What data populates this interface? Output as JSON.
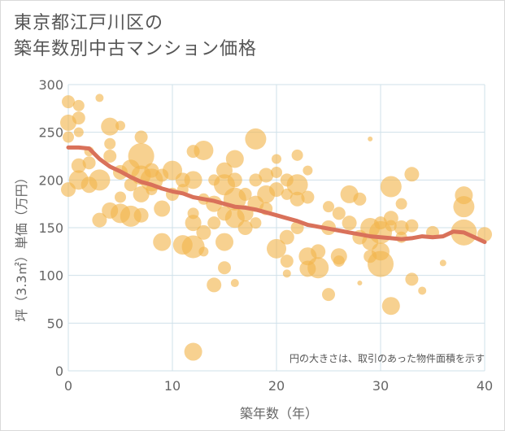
{
  "title": {
    "line1": "東京都江戸川区の",
    "line2": "築年数別中古マンション価格"
  },
  "chart_data": {
    "type": "scatter",
    "title": "東京都江戸川区の築年数別中古マンション価格",
    "xlabel": "築年数（年）",
    "ylabel": "坪（3.3㎡）単価（万円）",
    "xlim": [
      0,
      40
    ],
    "ylim": [
      0,
      300
    ],
    "x_ticks": [
      "0",
      "10",
      "20",
      "30",
      "40"
    ],
    "y_ticks": [
      "0",
      "50",
      "100",
      "150",
      "200",
      "250",
      "300"
    ],
    "annotation": "円の大きさは、取引のあった物件面積を示す",
    "grid": true,
    "colors": {
      "bubble": "#f2b54c",
      "line": "#d9715a",
      "grid": "#cfe0ea"
    },
    "trend_line": {
      "x": [
        0,
        1,
        2,
        3,
        4,
        5,
        6,
        7,
        8,
        9,
        10,
        11,
        12,
        13,
        14,
        15,
        16,
        17,
        18,
        19,
        20,
        21,
        22,
        23,
        24,
        25,
        26,
        27,
        28,
        29,
        30,
        31,
        32,
        33,
        34,
        35,
        36,
        37,
        38,
        39,
        40
      ],
      "y": [
        234,
        234,
        233,
        222,
        214,
        209,
        203,
        198,
        195,
        191,
        188,
        186,
        182,
        180,
        178,
        175,
        172,
        171,
        169,
        166,
        163,
        160,
        157,
        153,
        151,
        149,
        147,
        145,
        143,
        141,
        140,
        139,
        138,
        139,
        141,
        140,
        141,
        146,
        145,
        140,
        135
      ]
    },
    "points": [
      {
        "x": 0,
        "y": 282,
        "s": 8
      },
      {
        "x": 0,
        "y": 260,
        "s": 10
      },
      {
        "x": 0,
        "y": 245,
        "s": 7
      },
      {
        "x": 0,
        "y": 190,
        "s": 9
      },
      {
        "x": 1,
        "y": 278,
        "s": 7
      },
      {
        "x": 1,
        "y": 265,
        "s": 8
      },
      {
        "x": 1,
        "y": 250,
        "s": 6
      },
      {
        "x": 1,
        "y": 215,
        "s": 9
      },
      {
        "x": 1,
        "y": 200,
        "s": 12
      },
      {
        "x": 2,
        "y": 230,
        "s": 6
      },
      {
        "x": 2,
        "y": 218,
        "s": 8
      },
      {
        "x": 2,
        "y": 195,
        "s": 10
      },
      {
        "x": 3,
        "y": 286,
        "s": 5
      },
      {
        "x": 3,
        "y": 200,
        "s": 13
      },
      {
        "x": 3,
        "y": 158,
        "s": 9
      },
      {
        "x": 4,
        "y": 256,
        "s": 11
      },
      {
        "x": 4,
        "y": 238,
        "s": 7
      },
      {
        "x": 4,
        "y": 225,
        "s": 8
      },
      {
        "x": 4,
        "y": 168,
        "s": 10
      },
      {
        "x": 5,
        "y": 257,
        "s": 6
      },
      {
        "x": 5,
        "y": 208,
        "s": 9
      },
      {
        "x": 5,
        "y": 182,
        "s": 7
      },
      {
        "x": 5,
        "y": 165,
        "s": 12
      },
      {
        "x": 6,
        "y": 212,
        "s": 11
      },
      {
        "x": 6,
        "y": 195,
        "s": 8
      },
      {
        "x": 6,
        "y": 162,
        "s": 13
      },
      {
        "x": 7,
        "y": 245,
        "s": 8
      },
      {
        "x": 7,
        "y": 225,
        "s": 16
      },
      {
        "x": 7,
        "y": 205,
        "s": 12
      },
      {
        "x": 7,
        "y": 185,
        "s": 10
      },
      {
        "x": 7,
        "y": 163,
        "s": 9
      },
      {
        "x": 8,
        "y": 210,
        "s": 9
      },
      {
        "x": 8,
        "y": 200,
        "s": 14
      },
      {
        "x": 8,
        "y": 190,
        "s": 7
      },
      {
        "x": 9,
        "y": 205,
        "s": 8
      },
      {
        "x": 9,
        "y": 170,
        "s": 10
      },
      {
        "x": 9,
        "y": 135,
        "s": 11
      },
      {
        "x": 10,
        "y": 210,
        "s": 12
      },
      {
        "x": 10,
        "y": 185,
        "s": 8
      },
      {
        "x": 11,
        "y": 200,
        "s": 9
      },
      {
        "x": 11,
        "y": 190,
        "s": 7
      },
      {
        "x": 11,
        "y": 132,
        "s": 12
      },
      {
        "x": 12,
        "y": 230,
        "s": 8
      },
      {
        "x": 12,
        "y": 200,
        "s": 11
      },
      {
        "x": 12,
        "y": 165,
        "s": 7
      },
      {
        "x": 12,
        "y": 155,
        "s": 10
      },
      {
        "x": 12,
        "y": 130,
        "s": 14
      },
      {
        "x": 12,
        "y": 20,
        "s": 11
      },
      {
        "x": 13,
        "y": 231,
        "s": 12
      },
      {
        "x": 13,
        "y": 180,
        "s": 7
      },
      {
        "x": 13,
        "y": 145,
        "s": 9
      },
      {
        "x": 13,
        "y": 125,
        "s": 6
      },
      {
        "x": 14,
        "y": 200,
        "s": 7
      },
      {
        "x": 14,
        "y": 175,
        "s": 10
      },
      {
        "x": 14,
        "y": 155,
        "s": 8
      },
      {
        "x": 14,
        "y": 90,
        "s": 9
      },
      {
        "x": 15,
        "y": 210,
        "s": 10
      },
      {
        "x": 15,
        "y": 195,
        "s": 13
      },
      {
        "x": 15,
        "y": 165,
        "s": 9
      },
      {
        "x": 15,
        "y": 135,
        "s": 11
      },
      {
        "x": 15,
        "y": 108,
        "s": 8
      },
      {
        "x": 16,
        "y": 222,
        "s": 11
      },
      {
        "x": 16,
        "y": 200,
        "s": 9
      },
      {
        "x": 16,
        "y": 180,
        "s": 14
      },
      {
        "x": 16,
        "y": 160,
        "s": 12
      },
      {
        "x": 16,
        "y": 92,
        "s": 5
      },
      {
        "x": 17,
        "y": 185,
        "s": 8
      },
      {
        "x": 17,
        "y": 165,
        "s": 10
      },
      {
        "x": 17,
        "y": 150,
        "s": 9
      },
      {
        "x": 18,
        "y": 243,
        "s": 13
      },
      {
        "x": 18,
        "y": 200,
        "s": 8
      },
      {
        "x": 18,
        "y": 175,
        "s": 10
      },
      {
        "x": 18,
        "y": 155,
        "s": 7
      },
      {
        "x": 19,
        "y": 205,
        "s": 9
      },
      {
        "x": 19,
        "y": 185,
        "s": 11
      },
      {
        "x": 19,
        "y": 170,
        "s": 8
      },
      {
        "x": 20,
        "y": 222,
        "s": 6
      },
      {
        "x": 20,
        "y": 208,
        "s": 7
      },
      {
        "x": 20,
        "y": 190,
        "s": 9
      },
      {
        "x": 20,
        "y": 128,
        "s": 12
      },
      {
        "x": 21,
        "y": 200,
        "s": 8
      },
      {
        "x": 21,
        "y": 185,
        "s": 7
      },
      {
        "x": 21,
        "y": 140,
        "s": 9
      },
      {
        "x": 21,
        "y": 115,
        "s": 8
      },
      {
        "x": 21,
        "y": 102,
        "s": 5
      },
      {
        "x": 22,
        "y": 226,
        "s": 7
      },
      {
        "x": 22,
        "y": 195,
        "s": 13
      },
      {
        "x": 22,
        "y": 180,
        "s": 9
      },
      {
        "x": 22,
        "y": 150,
        "s": 8
      },
      {
        "x": 23,
        "y": 210,
        "s": 6
      },
      {
        "x": 23,
        "y": 182,
        "s": 8
      },
      {
        "x": 23,
        "y": 120,
        "s": 11
      },
      {
        "x": 23,
        "y": 107,
        "s": 10
      },
      {
        "x": 24,
        "y": 125,
        "s": 9
      },
      {
        "x": 24,
        "y": 108,
        "s": 13
      },
      {
        "x": 25,
        "y": 172,
        "s": 7
      },
      {
        "x": 25,
        "y": 150,
        "s": 9
      },
      {
        "x": 25,
        "y": 80,
        "s": 8
      },
      {
        "x": 26,
        "y": 165,
        "s": 8
      },
      {
        "x": 26,
        "y": 120,
        "s": 10
      },
      {
        "x": 26,
        "y": 115,
        "s": 7
      },
      {
        "x": 27,
        "y": 185,
        "s": 11
      },
      {
        "x": 27,
        "y": 155,
        "s": 9
      },
      {
        "x": 28,
        "y": 180,
        "s": 8
      },
      {
        "x": 28,
        "y": 140,
        "s": 9
      },
      {
        "x": 28,
        "y": 92,
        "s": 3
      },
      {
        "x": 29,
        "y": 243,
        "s": 3
      },
      {
        "x": 29,
        "y": 150,
        "s": 12
      },
      {
        "x": 29,
        "y": 135,
        "s": 10
      },
      {
        "x": 29,
        "y": 120,
        "s": 8
      },
      {
        "x": 30,
        "y": 155,
        "s": 8
      },
      {
        "x": 30,
        "y": 145,
        "s": 14
      },
      {
        "x": 30,
        "y": 125,
        "s": 11
      },
      {
        "x": 30,
        "y": 112,
        "s": 16
      },
      {
        "x": 31,
        "y": 193,
        "s": 13
      },
      {
        "x": 31,
        "y": 160,
        "s": 9
      },
      {
        "x": 31,
        "y": 152,
        "s": 7
      },
      {
        "x": 31,
        "y": 68,
        "s": 11
      },
      {
        "x": 32,
        "y": 175,
        "s": 7
      },
      {
        "x": 32,
        "y": 150,
        "s": 9
      },
      {
        "x": 32,
        "y": 140,
        "s": 7
      },
      {
        "x": 33,
        "y": 206,
        "s": 9
      },
      {
        "x": 33,
        "y": 152,
        "s": 8
      },
      {
        "x": 33,
        "y": 96,
        "s": 8
      },
      {
        "x": 34,
        "y": 84,
        "s": 5
      },
      {
        "x": 35,
        "y": 145,
        "s": 8
      },
      {
        "x": 36,
        "y": 113,
        "s": 4
      },
      {
        "x": 38,
        "y": 184,
        "s": 11
      },
      {
        "x": 38,
        "y": 172,
        "s": 13
      },
      {
        "x": 38,
        "y": 145,
        "s": 16
      },
      {
        "x": 40,
        "y": 143,
        "s": 9
      }
    ]
  }
}
